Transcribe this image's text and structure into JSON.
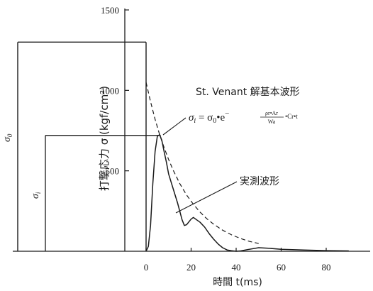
{
  "chart_data": {
    "type": "line",
    "xlabel": "時間 t(ms)",
    "ylabel": "打撃応力 σ (kgf/cm²)",
    "xlim": [
      -10,
      90
    ],
    "ylim": [
      0,
      1500
    ],
    "x_ticks": [
      "0",
      "20",
      "40",
      "60",
      "80"
    ],
    "x_tick_values": [
      0,
      20,
      40,
      60,
      80
    ],
    "y_ticks": [
      "500",
      "1000",
      "1500"
    ],
    "y_tick_values": [
      500,
      1000,
      1500
    ],
    "series": [
      {
        "name": "St. Venant 解基本波形",
        "style": "dashed",
        "x": [
          0,
          2,
          4,
          6,
          8,
          10,
          12,
          15,
          18,
          21,
          24,
          27,
          30,
          34,
          38,
          42,
          46,
          50
        ],
        "y": [
          1050,
          930,
          820,
          725,
          645,
          570,
          505,
          420,
          350,
          292,
          243,
          202,
          168,
          131,
          102,
          79,
          61,
          48
        ]
      },
      {
        "name": "実測波形",
        "style": "solid",
        "x": [
          0,
          1,
          2,
          3,
          4,
          5,
          6,
          7,
          8,
          9,
          10,
          12,
          14,
          16,
          17,
          18,
          20,
          21,
          22,
          24,
          26,
          28,
          30,
          32,
          34,
          36,
          38,
          40,
          42,
          45,
          50,
          55,
          60,
          70,
          80,
          90
        ],
        "y": [
          0,
          30,
          160,
          420,
          620,
          715,
          725,
          690,
          620,
          555,
          480,
          390,
          300,
          195,
          160,
          165,
          200,
          210,
          200,
          180,
          150,
          110,
          75,
          45,
          22,
          8,
          3,
          0,
          2,
          10,
          22,
          18,
          12,
          8,
          4,
          2
        ]
      }
    ],
    "annotations": {
      "series_label_theory": "St. Venant 解基本波形",
      "series_label_measured": "実測波形",
      "formula": {
        "lhs": "σ",
        "lhs_sub": "i",
        "equals": " = σ",
        "mid_sub": "0",
        "dot_e": "•e",
        "exp_minus": "−",
        "exp_numerator": "ρr•Ar",
        "exp_denominator": "Wa",
        "exp_tail": "•Cr•t"
      },
      "sigma_0": "σ",
      "sigma_0_sub": "0",
      "sigma_i": "σ",
      "sigma_i_sub": "i",
      "sigma_0_value": 1300,
      "sigma_i_value": 720
    },
    "grid": false,
    "legend": "none"
  }
}
